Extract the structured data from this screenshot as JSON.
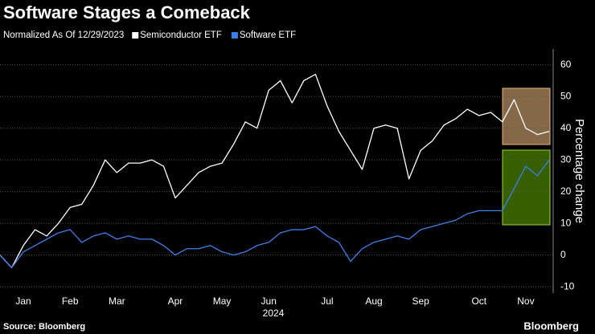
{
  "chart_data": {
    "type": "line",
    "title": "Software Stages a Comeback",
    "subtitle": "Normalized As Of 12/29/2023",
    "y_label": "Percentage change",
    "x_sublabel": "2024",
    "source": "Source: Bloomberg",
    "brand": "Bloomberg",
    "categories": [
      null,
      null,
      "Jan",
      null,
      null,
      null,
      "Feb",
      null,
      null,
      null,
      "Mar",
      null,
      null,
      null,
      null,
      "Apr",
      null,
      null,
      null,
      "May",
      null,
      null,
      null,
      "Jun",
      null,
      null,
      null,
      null,
      "Jul",
      null,
      null,
      null,
      "Aug",
      null,
      null,
      null,
      "Sep",
      null,
      null,
      null,
      null,
      "Oct",
      null,
      null,
      null,
      "Nov",
      null,
      null
    ],
    "series": [
      {
        "name": "Semiconductor ETF",
        "color": "#ffffff",
        "values": [
          0,
          -4,
          3,
          8,
          6,
          10,
          15,
          16,
          22,
          30,
          26,
          29,
          29,
          30,
          28,
          18,
          22,
          26,
          28,
          29,
          35,
          42,
          40,
          52,
          55,
          48,
          55,
          57,
          47,
          39,
          33,
          27,
          40,
          41,
          40,
          24,
          33,
          36,
          41,
          43,
          46,
          44,
          45,
          42,
          49,
          40,
          38,
          39
        ]
      },
      {
        "name": "Software ETF",
        "color": "#3d7fe6",
        "values": [
          0,
          -4,
          1,
          3,
          5,
          7,
          8,
          4,
          6,
          7,
          5,
          6,
          5,
          5,
          3,
          0,
          2,
          2,
          3,
          1,
          0,
          1,
          3,
          4,
          7,
          8,
          8,
          9,
          6,
          4,
          -2,
          2,
          4,
          5,
          6,
          5,
          8,
          9,
          10,
          11,
          13,
          14,
          14,
          14,
          21,
          28,
          25,
          30
        ]
      }
    ],
    "ylim": [
      -12,
      65
    ],
    "yticks": [
      -10,
      0,
      10,
      20,
      30,
      40,
      50,
      60
    ],
    "grid": true
  }
}
